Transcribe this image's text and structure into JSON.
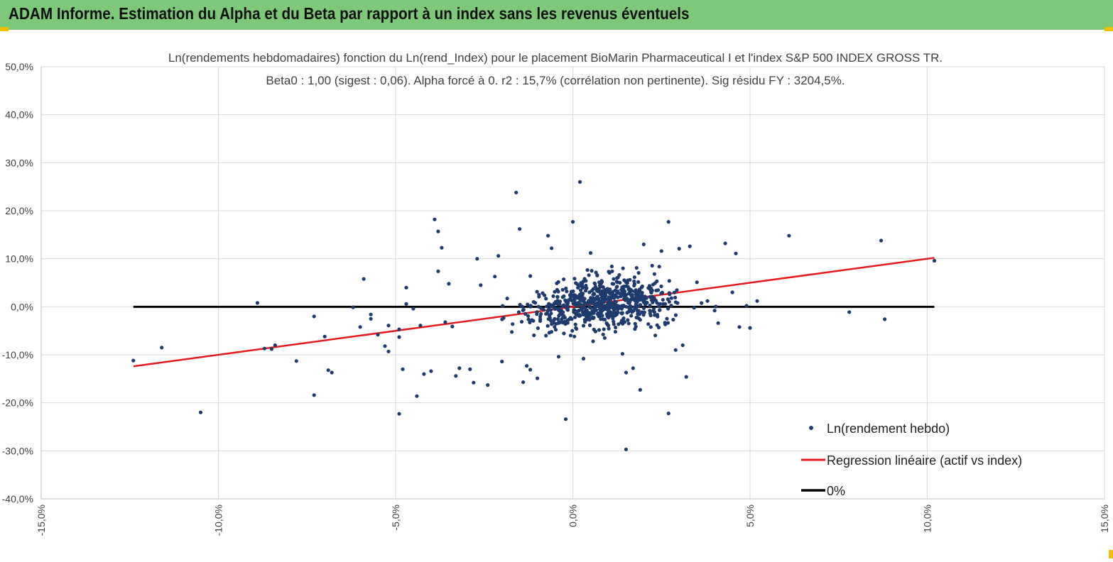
{
  "header": {
    "title": "ADAM Informe. Estimation du Alpha et du Beta par rapport à un index sans les revenus éventuels"
  },
  "colors": {
    "banner": "#7ec87a",
    "points": "#1f3b6e",
    "regression": "#e41a1c",
    "zero_line": "#000000",
    "grid": "#d9d9d9"
  },
  "chart_data": {
    "type": "scatter",
    "title_line1": "Ln(rendements hebdomadaires) fonction du Ln(rend_Index) pour le placement BioMarin Pharmaceutical I et l'index S&P 500 INDEX GROSS TR.",
    "title_line2": "Beta0 : 1,00 (sigest : 0,06). Alpha forcé à 0. r2 : 15,7% (corrélation non pertinente). Sig résidu FY : 3204,5%.",
    "xlim": [
      -15,
      15
    ],
    "ylim": [
      -40,
      50
    ],
    "x_ticks": [
      "-15,0%",
      "-10,0%",
      "-5,0%",
      "0,0%",
      "5,0%",
      "10,0%",
      "15,0%"
    ],
    "y_ticks": [
      "50,0%",
      "40,0%",
      "30,0%",
      "20,0%",
      "10,0%",
      "0,0%",
      "-10,0%",
      "-20,0%",
      "-30,0%",
      "-40,0%"
    ],
    "grid": "vertical and horizontal",
    "legend_position": "bottom-right",
    "series": [
      {
        "name": "Ln(rendement hebdo)",
        "kind": "scatter",
        "points": [
          [
            -12.4,
            -11.2
          ],
          [
            -11.6,
            -8.5
          ],
          [
            -10.5,
            -22.0
          ],
          [
            -8.9,
            0.8
          ],
          [
            -8.7,
            -8.7
          ],
          [
            -8.5,
            -8.8
          ],
          [
            -8.4,
            -8.0
          ],
          [
            -7.8,
            -11.3
          ],
          [
            -7.3,
            -18.4
          ],
          [
            -7.3,
            -2.0
          ],
          [
            -7.0,
            -6.2
          ],
          [
            -6.9,
            -13.2
          ],
          [
            -6.8,
            -13.7
          ],
          [
            -6.2,
            -0.1
          ],
          [
            -6.0,
            -4.2
          ],
          [
            -5.9,
            5.8
          ],
          [
            -5.7,
            -1.6
          ],
          [
            -5.7,
            -2.5
          ],
          [
            -5.5,
            -5.8
          ],
          [
            -5.3,
            -8.2
          ],
          [
            -5.2,
            -9.3
          ],
          [
            -5.2,
            -3.9
          ],
          [
            -4.9,
            -22.3
          ],
          [
            -4.9,
            -6.3
          ],
          [
            -4.9,
            -4.7
          ],
          [
            -4.8,
            -13.0
          ],
          [
            -4.7,
            0.6
          ],
          [
            -4.7,
            4.0
          ],
          [
            -4.5,
            -0.4
          ],
          [
            -4.4,
            -18.6
          ],
          [
            -4.3,
            -3.9
          ],
          [
            -4.2,
            -14.0
          ],
          [
            -4.0,
            -13.4
          ],
          [
            -3.9,
            18.2
          ],
          [
            -3.8,
            15.7
          ],
          [
            -3.8,
            7.4
          ],
          [
            -3.7,
            12.3
          ],
          [
            -3.6,
            -3.2
          ],
          [
            -3.5,
            4.8
          ],
          [
            -3.4,
            -4.1
          ],
          [
            -3.3,
            -14.4
          ],
          [
            -3.2,
            -12.8
          ],
          [
            -2.9,
            -13.0
          ],
          [
            -2.8,
            -15.8
          ],
          [
            -2.7,
            10.0
          ],
          [
            -2.6,
            4.5
          ],
          [
            -2.4,
            -16.3
          ],
          [
            -2.2,
            6.3
          ],
          [
            -2.1,
            10.6
          ],
          [
            -2.0,
            -11.4
          ],
          [
            -1.7,
            -3.6
          ],
          [
            -1.6,
            23.8
          ],
          [
            -1.5,
            16.2
          ],
          [
            -1.4,
            -15.7
          ],
          [
            -1.3,
            -12.3
          ],
          [
            -1.2,
            -13.1
          ],
          [
            -1.2,
            6.4
          ],
          [
            -1.0,
            -14.9
          ],
          [
            -0.9,
            -1.5
          ],
          [
            -0.7,
            14.8
          ],
          [
            -0.6,
            12.2
          ],
          [
            -0.4,
            -10.4
          ],
          [
            -0.2,
            -23.4
          ],
          [
            0.0,
            17.7
          ],
          [
            0.1,
            -4.6
          ],
          [
            0.2,
            26.0
          ],
          [
            0.3,
            -10.8
          ],
          [
            0.5,
            11.2
          ],
          [
            0.9,
            -6.5
          ],
          [
            1.1,
            8.4
          ],
          [
            1.2,
            -5.2
          ],
          [
            1.4,
            -9.8
          ],
          [
            1.5,
            -29.7
          ],
          [
            1.5,
            -13.7
          ],
          [
            1.7,
            -12.8
          ],
          [
            1.8,
            8.1
          ],
          [
            1.9,
            -17.3
          ],
          [
            2.0,
            13.0
          ],
          [
            2.2,
            -4.2
          ],
          [
            2.5,
            11.6
          ],
          [
            2.6,
            -3.3
          ],
          [
            2.7,
            -22.2
          ],
          [
            2.7,
            17.7
          ],
          [
            2.9,
            -9.0
          ],
          [
            3.0,
            12.1
          ],
          [
            3.1,
            -8.0
          ],
          [
            3.2,
            -14.6
          ],
          [
            3.3,
            12.6
          ],
          [
            3.5,
            5.1
          ],
          [
            3.8,
            1.2
          ],
          [
            4.0,
            -0.8
          ],
          [
            4.1,
            -3.4
          ],
          [
            4.3,
            13.2
          ],
          [
            4.5,
            3.0
          ],
          [
            4.6,
            11.1
          ],
          [
            4.7,
            -4.2
          ],
          [
            4.9,
            0.2
          ],
          [
            5.0,
            -4.4
          ],
          [
            5.2,
            1.2
          ],
          [
            6.1,
            14.8
          ],
          [
            7.8,
            -1.1
          ],
          [
            8.7,
            13.8
          ],
          [
            8.8,
            -2.6
          ],
          [
            10.2,
            9.6
          ]
        ]
      },
      {
        "name": "Regression linéaire (actif vs index)",
        "kind": "line",
        "x": [
          -12.4,
          10.2
        ],
        "y": [
          -12.4,
          10.2
        ]
      },
      {
        "name": "0%",
        "kind": "line",
        "x": [
          -12.4,
          10.2
        ],
        "y": [
          0,
          0
        ]
      }
    ]
  }
}
